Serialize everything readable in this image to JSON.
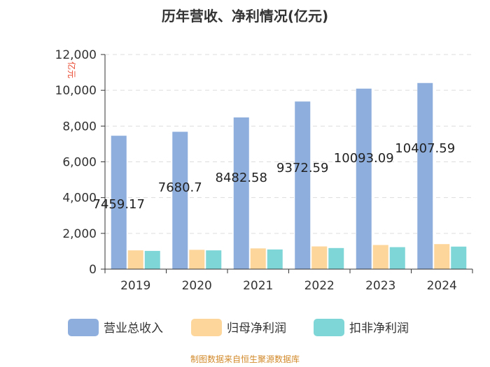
{
  "chart_data": {
    "type": "bar",
    "title": "历年营收、净利情况(亿元)",
    "ylabel": "亿元",
    "xlabel": "",
    "categories": [
      "2019",
      "2020",
      "2021",
      "2022",
      "2023",
      "2024"
    ],
    "ylim": [
      0,
      12000
    ],
    "yticks": [
      0,
      2000,
      4000,
      6000,
      8000,
      10000,
      12000
    ],
    "ytick_labels": [
      "0",
      "2,000",
      "4,000",
      "6,000",
      "8,000",
      "10,000",
      "12,000"
    ],
    "grid": true,
    "legend_position": "bottom",
    "series": [
      {
        "name": "营业总收入",
        "values": [
          7459.17,
          7680.7,
          8482.58,
          9372.59,
          10093.09,
          10407.59
        ],
        "labels": [
          "7459.17",
          "7680.7",
          "8482.58",
          "9372.59",
          "10093.09",
          "10407.59"
        ]
      },
      {
        "name": "归母净利润",
        "values": [
          1050,
          1080,
          1160,
          1270,
          1350,
          1400
        ]
      },
      {
        "name": "扣非净利润",
        "values": [
          1020,
          1050,
          1100,
          1180,
          1230,
          1260
        ]
      }
    ]
  },
  "colors": [
    "#8eaedd",
    "#fdd69b",
    "#7fd6d7"
  ],
  "source": "制图数据来自恒生聚源数据库"
}
